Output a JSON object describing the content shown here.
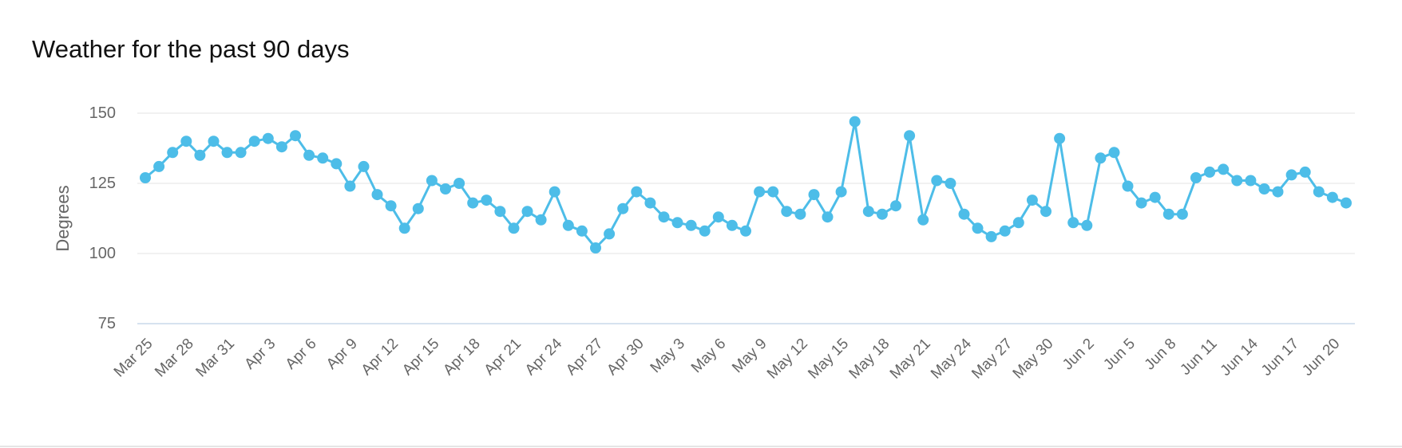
{
  "chart_data": {
    "type": "line",
    "title": "Weather for the past 90 days",
    "ylabel": "Degrees",
    "xlabel": "",
    "ylim": [
      75,
      150
    ],
    "yticks": [
      75,
      100,
      125,
      150
    ],
    "grid": true,
    "legend": "none",
    "colors": {
      "series": "#4dbde8",
      "grid": "#e3e3e3",
      "baseline": "#c8d8ea",
      "tick_text": "#666666"
    },
    "x_tick_labels": [
      "Mar 25",
      "Mar 28",
      "Mar 31",
      "Apr 3",
      "Apr 6",
      "Apr 9",
      "Apr 12",
      "Apr 15",
      "Apr 18",
      "Apr 21",
      "Apr 24",
      "Apr 27",
      "Apr 30",
      "May 3",
      "May 6",
      "May 9",
      "May 12",
      "May 15",
      "May 18",
      "May 21",
      "May 24",
      "May 27",
      "May 30",
      "Jun 2",
      "Jun 5",
      "Jun 8",
      "Jun 11",
      "Jun 14",
      "Jun 17",
      "Jun 20"
    ],
    "series": [
      {
        "values": [
          127,
          131,
          136,
          140,
          135,
          140,
          136,
          136,
          140,
          141,
          138,
          142,
          135,
          134,
          132,
          124,
          131,
          121,
          117,
          109,
          116,
          126,
          123,
          125,
          118,
          119,
          115,
          109,
          115,
          112,
          122,
          110,
          108,
          102,
          107,
          116,
          122,
          118,
          113,
          111,
          110,
          108,
          113,
          110,
          108,
          122,
          122,
          115,
          114,
          121,
          113,
          122,
          147,
          115,
          114,
          117,
          142,
          112,
          126,
          125,
          114,
          109,
          106,
          108,
          111,
          119,
          115,
          141,
          111,
          110,
          134,
          136,
          124,
          118,
          120,
          114,
          114,
          127,
          129,
          130,
          126,
          126,
          123,
          122,
          128,
          129,
          122,
          120,
          118
        ]
      }
    ]
  }
}
